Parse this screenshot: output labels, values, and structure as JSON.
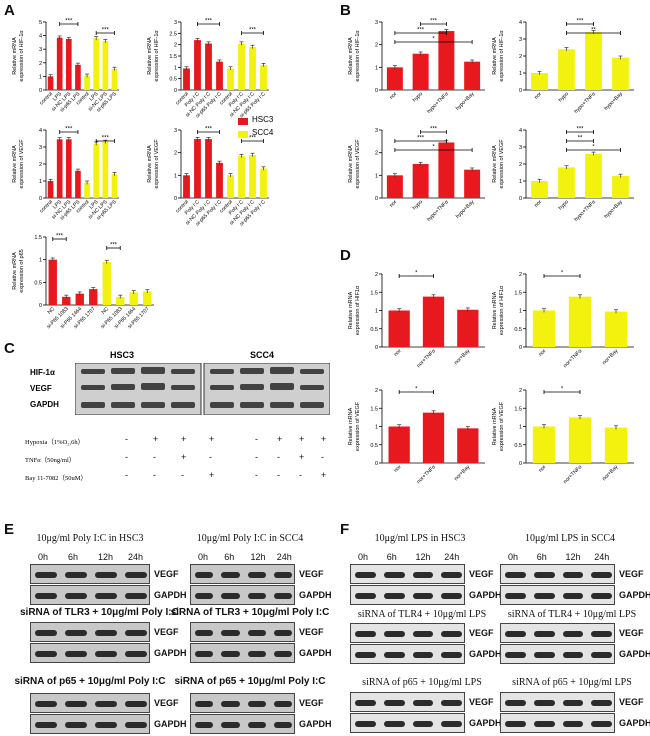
{
  "panels": {
    "A": "A",
    "B": "B",
    "C": "C",
    "D": "D",
    "E": "E",
    "F": "F"
  },
  "legend": {
    "hsc3": "HSC3",
    "scc4": "SCC4",
    "hsc3_color": "#e8191e",
    "scc4_color": "#f2f20e"
  },
  "chart_data": [
    {
      "id": "A1",
      "type": "bar",
      "panel": "A",
      "ylabel": "Relative mRNA\nexpression of HIF-1α",
      "ylim": [
        0,
        5
      ],
      "yticks": [
        0,
        1,
        2,
        3,
        4,
        5
      ],
      "categories": [
        "control",
        "LPS",
        "si-NC LPS",
        "si-p65 LPS",
        "control",
        "LPS",
        "si-NC LPS",
        "si-p65 LPS"
      ],
      "values": [
        1.0,
        3.85,
        3.75,
        1.85,
        1.05,
        3.8,
        3.6,
        1.55
      ],
      "colors": [
        "#e8191e",
        "#e8191e",
        "#e8191e",
        "#e8191e",
        "#f2f20e",
        "#f2f20e",
        "#f2f20e",
        "#f2f20e"
      ],
      "sig": [
        {
          "from": 1,
          "to": 3,
          "label": "***"
        },
        {
          "from": 5,
          "to": 7,
          "label": "***"
        }
      ]
    },
    {
      "id": "A2",
      "type": "bar",
      "panel": "A",
      "ylabel": "Relative mRNA\nexpression of HIF-1α",
      "ylim": [
        0,
        3.0
      ],
      "yticks": [
        0,
        0.5,
        1.0,
        1.5,
        2.0,
        2.5,
        3.0
      ],
      "categories": [
        "control",
        "Poly I:C",
        "si-NC Poly I:C",
        "si-p65 Poly I:C",
        "control",
        "Poly I:C",
        "si-NC Poly I:C",
        "si-p65 Poly I:C"
      ],
      "values": [
        0.95,
        2.2,
        2.05,
        1.25,
        0.95,
        2.05,
        1.9,
        1.1
      ],
      "colors": [
        "#e8191e",
        "#e8191e",
        "#e8191e",
        "#e8191e",
        "#f2f20e",
        "#f2f20e",
        "#f2f20e",
        "#f2f20e"
      ],
      "sig": [
        {
          "from": 1,
          "to": 3,
          "label": "***"
        },
        {
          "from": 5,
          "to": 7,
          "label": "***"
        }
      ]
    },
    {
      "id": "A3",
      "type": "bar",
      "panel": "A",
      "ylabel": "Relative mRNA\nexpression of VEGF",
      "ylim": [
        0,
        4
      ],
      "yticks": [
        0,
        1,
        2,
        3,
        4
      ],
      "categories": [
        "control",
        "LPS",
        "si-NC LPS",
        "si-p65 LPS",
        "control",
        "LPS",
        "si-NC LPS",
        "si-p65 LPS"
      ],
      "values": [
        1.0,
        3.45,
        3.45,
        1.6,
        0.9,
        3.2,
        3.3,
        1.4
      ],
      "colors": [
        "#e8191e",
        "#e8191e",
        "#e8191e",
        "#e8191e",
        "#f2f20e",
        "#f2f20e",
        "#f2f20e",
        "#f2f20e"
      ],
      "sig": [
        {
          "from": 1,
          "to": 3,
          "label": "***"
        },
        {
          "from": 5,
          "to": 7,
          "label": "***"
        }
      ]
    },
    {
      "id": "A4",
      "type": "bar",
      "panel": "A",
      "ylabel": "Relative mRNA\nexpression of VEGF",
      "ylim": [
        0,
        3
      ],
      "yticks": [
        0,
        1,
        2,
        3
      ],
      "categories": [
        "control",
        "Poly I:C",
        "si-NC Poly I:C",
        "si-p65 Poly I:C",
        "control",
        "Poly I:C",
        "si-NC Poly I:C",
        "si-p65 Poly I:C"
      ],
      "values": [
        1.0,
        2.6,
        2.6,
        1.55,
        1.0,
        1.85,
        1.9,
        1.3
      ],
      "colors": [
        "#e8191e",
        "#e8191e",
        "#e8191e",
        "#e8191e",
        "#f2f20e",
        "#f2f20e",
        "#f2f20e",
        "#f2f20e"
      ],
      "sig": [
        {
          "from": 1,
          "to": 3,
          "label": "***"
        },
        {
          "from": 5,
          "to": 7,
          "label": "***"
        }
      ]
    },
    {
      "id": "A5",
      "type": "bar",
      "panel": "A",
      "ylabel": "Relative mRNA\nexpression of p65",
      "ylim": [
        0,
        1.5
      ],
      "yticks": [
        0,
        0.5,
        1.0,
        1.5
      ],
      "categories": [
        "NC",
        "si-P65 1083",
        "si-P65 1464",
        "si-P65 1707",
        "NC",
        "si-P65 1083",
        "si-P65 1464",
        "si-P65 1707"
      ],
      "values": [
        1.0,
        0.18,
        0.25,
        0.35,
        0.95,
        0.18,
        0.28,
        0.3
      ],
      "colors": [
        "#e8191e",
        "#e8191e",
        "#e8191e",
        "#e8191e",
        "#f2f20e",
        "#f2f20e",
        "#f2f20e",
        "#f2f20e"
      ],
      "sig": [
        {
          "from": 0,
          "to": 1,
          "label": "***"
        },
        {
          "from": 4,
          "to": 5,
          "label": "***"
        }
      ]
    },
    {
      "id": "B1",
      "type": "bar",
      "panel": "B",
      "ylabel": "Relative mRNA\nexpression of HIF-1α",
      "ylim": [
        0,
        3
      ],
      "yticks": [
        0,
        1,
        2,
        3
      ],
      "categories": [
        "nor",
        "hypo",
        "hypo+TNFα",
        "hypo+Bay"
      ],
      "values": [
        1.0,
        1.6,
        2.6,
        1.25
      ],
      "colors": [
        "#e8191e",
        "#e8191e",
        "#e8191e",
        "#e8191e"
      ],
      "sig": [
        {
          "from": 1,
          "to": 2,
          "label": "***"
        },
        {
          "from": 0,
          "to": 2,
          "label": "***"
        },
        {
          "from": 0,
          "to": 3,
          "label": "*"
        }
      ]
    },
    {
      "id": "B2",
      "type": "bar",
      "panel": "B",
      "ylabel": "Relative mRNA\nexpression of HIF-1α",
      "ylim": [
        0,
        4
      ],
      "yticks": [
        0,
        1,
        2,
        3,
        4
      ],
      "categories": [
        "nor",
        "hypo",
        "hypo+TNFα",
        "hypo+Bay"
      ],
      "values": [
        1.0,
        2.4,
        3.4,
        1.9
      ],
      "colors": [
        "#f2f20e",
        "#f2f20e",
        "#f2f20e",
        "#f2f20e"
      ],
      "sig": [
        {
          "from": 1,
          "to": 2,
          "label": "***"
        },
        {
          "from": 1,
          "to": 3,
          "label": "**"
        }
      ]
    },
    {
      "id": "B3",
      "type": "bar",
      "panel": "B",
      "ylabel": "Relative mRNA\nexpression of VEGF",
      "ylim": [
        0,
        3
      ],
      "yticks": [
        0,
        1,
        2,
        3
      ],
      "categories": [
        "nor",
        "hypo",
        "hypo+TNFα",
        "hypo+Bay"
      ],
      "values": [
        1.0,
        1.5,
        2.45,
        1.25
      ],
      "colors": [
        "#e8191e",
        "#e8191e",
        "#e8191e",
        "#e8191e"
      ],
      "sig": [
        {
          "from": 1,
          "to": 2,
          "label": "***"
        },
        {
          "from": 0,
          "to": 2,
          "label": "***"
        },
        {
          "from": 0,
          "to": 3,
          "label": "*"
        }
      ]
    },
    {
      "id": "B4",
      "type": "bar",
      "panel": "B",
      "ylabel": "Relative mRNA\nexpression of VEGF",
      "ylim": [
        0,
        4
      ],
      "yticks": [
        0,
        1,
        2,
        3,
        4
      ],
      "categories": [
        "nor",
        "hypo",
        "hypo+TNFα",
        "hypo+Bay"
      ],
      "values": [
        1.0,
        1.8,
        2.6,
        1.3
      ],
      "colors": [
        "#f2f20e",
        "#f2f20e",
        "#f2f20e",
        "#f2f20e"
      ],
      "sig": [
        {
          "from": 1,
          "to": 2,
          "label": "***"
        },
        {
          "from": 1,
          "to": 2,
          "label": "**"
        },
        {
          "from": 1,
          "to": 3,
          "label": "*"
        }
      ]
    },
    {
      "id": "D1",
      "type": "bar",
      "panel": "D",
      "ylabel": "Relative mRNA\nexpression of HIF1α",
      "ylim": [
        0,
        2.0
      ],
      "yticks": [
        0,
        0.5,
        1.0,
        1.5,
        2.0
      ],
      "categories": [
        "nor",
        "nor+TNFα",
        "nor+Bay"
      ],
      "values": [
        1.0,
        1.38,
        1.02
      ],
      "colors": [
        "#e8191e",
        "#e8191e",
        "#e8191e"
      ],
      "sig": [
        {
          "from": 0,
          "to": 1,
          "label": "*"
        }
      ]
    },
    {
      "id": "D2",
      "type": "bar",
      "panel": "D",
      "ylabel": "Relative mRNA\nexpression of HIF1α",
      "ylim": [
        0,
        2.0
      ],
      "yticks": [
        0,
        0.5,
        1.0,
        1.5,
        2.0
      ],
      "categories": [
        "nor",
        "nor+TNFα",
        "nor+Bay"
      ],
      "values": [
        1.0,
        1.38,
        0.97
      ],
      "colors": [
        "#f2f20e",
        "#f2f20e",
        "#f2f20e"
      ],
      "sig": [
        {
          "from": 0,
          "to": 1,
          "label": "*"
        }
      ]
    },
    {
      "id": "D3",
      "type": "bar",
      "panel": "D",
      "ylabel": "Relative mRNA\nexpression of VEGF",
      "ylim": [
        0,
        2.0
      ],
      "yticks": [
        0,
        0.5,
        1.0,
        1.5,
        2.0
      ],
      "categories": [
        "nor",
        "nor+TNFα",
        "nor+Bay"
      ],
      "values": [
        1.0,
        1.38,
        0.95
      ],
      "colors": [
        "#e8191e",
        "#e8191e",
        "#e8191e"
      ],
      "sig": [
        {
          "from": 0,
          "to": 1,
          "label": "*"
        }
      ]
    },
    {
      "id": "D4",
      "type": "bar",
      "panel": "D",
      "ylabel": "Relative mRNA\nexpression of VEGF",
      "ylim": [
        0,
        2.0
      ],
      "yticks": [
        0,
        0.5,
        1.0,
        1.5,
        2.0
      ],
      "categories": [
        "nor",
        "nor+TNFα",
        "nor+Bay"
      ],
      "values": [
        1.0,
        1.25,
        0.97
      ],
      "colors": [
        "#f2f20e",
        "#f2f20e",
        "#f2f20e"
      ],
      "sig": [
        {
          "from": 0,
          "to": 1,
          "label": "*"
        }
      ]
    }
  ],
  "blot_c": {
    "hsc3": "HSC3",
    "scc4": "SCC4",
    "rows": [
      "HIF-1α",
      "VEGF",
      "GAPDH"
    ],
    "conditions": [
      {
        "label": "Hypoxia（1%O₂,6h）",
        "signs": [
          "-",
          "+",
          "+",
          "+",
          "-",
          "+",
          "+",
          "+"
        ]
      },
      {
        "label": "TNFα（50ng/ml）",
        "signs": [
          "-",
          "-",
          "+",
          "-",
          "-",
          "-",
          "+",
          "-"
        ]
      },
      {
        "label": "Bay 11-7082（50uM）",
        "signs": [
          "-",
          "-",
          "-",
          "+",
          "-",
          "-",
          "-",
          "+"
        ]
      }
    ]
  },
  "blot_e": {
    "title1": "10μg/ml Poly I:C in HSC3",
    "title2": "10μg/ml Poly I:C in SCC4",
    "title3": "siRNA of TLR3 + 10μg/ml Poly I:C",
    "title4": "siRNA of TLR3 + 10μg/ml Poly I:C",
    "title5": "siRNA of p65 + 10μg/ml Poly I:C",
    "title6": "siRNA of p65 + 10μg/ml Poly I:C",
    "times": [
      "0h",
      "6h",
      "12h",
      "24h"
    ],
    "vegf": "VEGF",
    "gapdh": "GAPDH"
  },
  "blot_f": {
    "title1": "10μg/ml LPS in HSC3",
    "title2": "10μg/ml LPS in SCC4",
    "title3": "siRNA of TLR4 + 10μg/ml LPS",
    "title4": "siRNA of TLR4 + 10μg/ml LPS",
    "title5": "siRNA of p65 + 10μg/ml LPS",
    "title6": "siRNA of p65 + 10μg/ml LPS",
    "times": [
      "0h",
      "6h",
      "12h",
      "24h"
    ],
    "vegf": "VEGF",
    "gapdh": "GAPDH"
  }
}
